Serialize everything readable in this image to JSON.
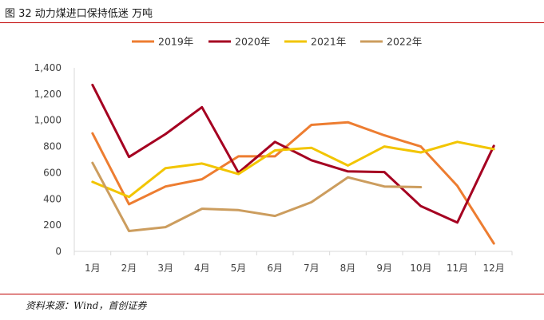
{
  "header": {
    "title": "图 32 动力煤进口保持低迷  万吨"
  },
  "footer": {
    "source": "资料来源：Wind，首创证券"
  },
  "colors": {
    "rule": "#c00000",
    "axis": "#d9d9d9",
    "tick_text": "#404040"
  },
  "chart_data": {
    "type": "line",
    "categories": [
      "1月",
      "2月",
      "3月",
      "4月",
      "5月",
      "6月",
      "7月",
      "8月",
      "9月",
      "10月",
      "11月",
      "12月"
    ],
    "ylim": [
      0,
      1400
    ],
    "yticks": [
      0,
      200,
      400,
      600,
      800,
      1000,
      1200,
      1400
    ],
    "ytick_labels": [
      "0",
      "200",
      "400",
      "600",
      "800",
      "1,000",
      "1,200",
      "1,400"
    ],
    "grid": false,
    "legend_position": "top",
    "series": [
      {
        "name": "2019年",
        "color": "#ed7d31",
        "values": [
          900,
          360,
          495,
          550,
          725,
          725,
          965,
          985,
          885,
          800,
          500,
          60
        ]
      },
      {
        "name": "2020年",
        "color": "#a50021",
        "values": [
          1270,
          720,
          895,
          1100,
          600,
          835,
          695,
          610,
          605,
          345,
          220,
          805
        ]
      },
      {
        "name": "2021年",
        "color": "#f2c500",
        "values": [
          530,
          415,
          635,
          670,
          590,
          770,
          790,
          655,
          800,
          755,
          835,
          780
        ]
      },
      {
        "name": "2022年",
        "color": "#cc9d5e",
        "values": [
          675,
          155,
          185,
          325,
          315,
          270,
          375,
          565,
          495,
          490,
          null,
          null
        ]
      }
    ]
  }
}
